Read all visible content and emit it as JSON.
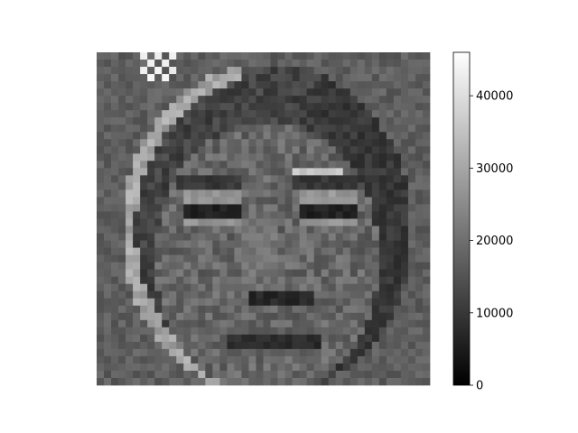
{
  "chart_data": {
    "type": "heatmap",
    "title": "",
    "colormap": "gray",
    "grid_rows": 46,
    "grid_cols": 46,
    "vmin": 0,
    "vmax": 46000,
    "colorbar": {
      "ticks": [
        0,
        10000,
        20000,
        30000,
        40000
      ],
      "tick_labels": [
        "0",
        "10000",
        "20000",
        "30000",
        "40000"
      ],
      "placement": "right"
    },
    "content": "grayscale pixelated face image (46x46 cells)",
    "regions": {
      "background": 17000,
      "hair": 12000,
      "face_skin": 18500,
      "hair_highlight": 30000,
      "eye_white": 27000,
      "eye_dark": 4000,
      "eyebrow": 10000,
      "brow_highlight": 36000,
      "nostril": 5000,
      "mouth": 6000,
      "corner_highlight": 45000
    }
  }
}
